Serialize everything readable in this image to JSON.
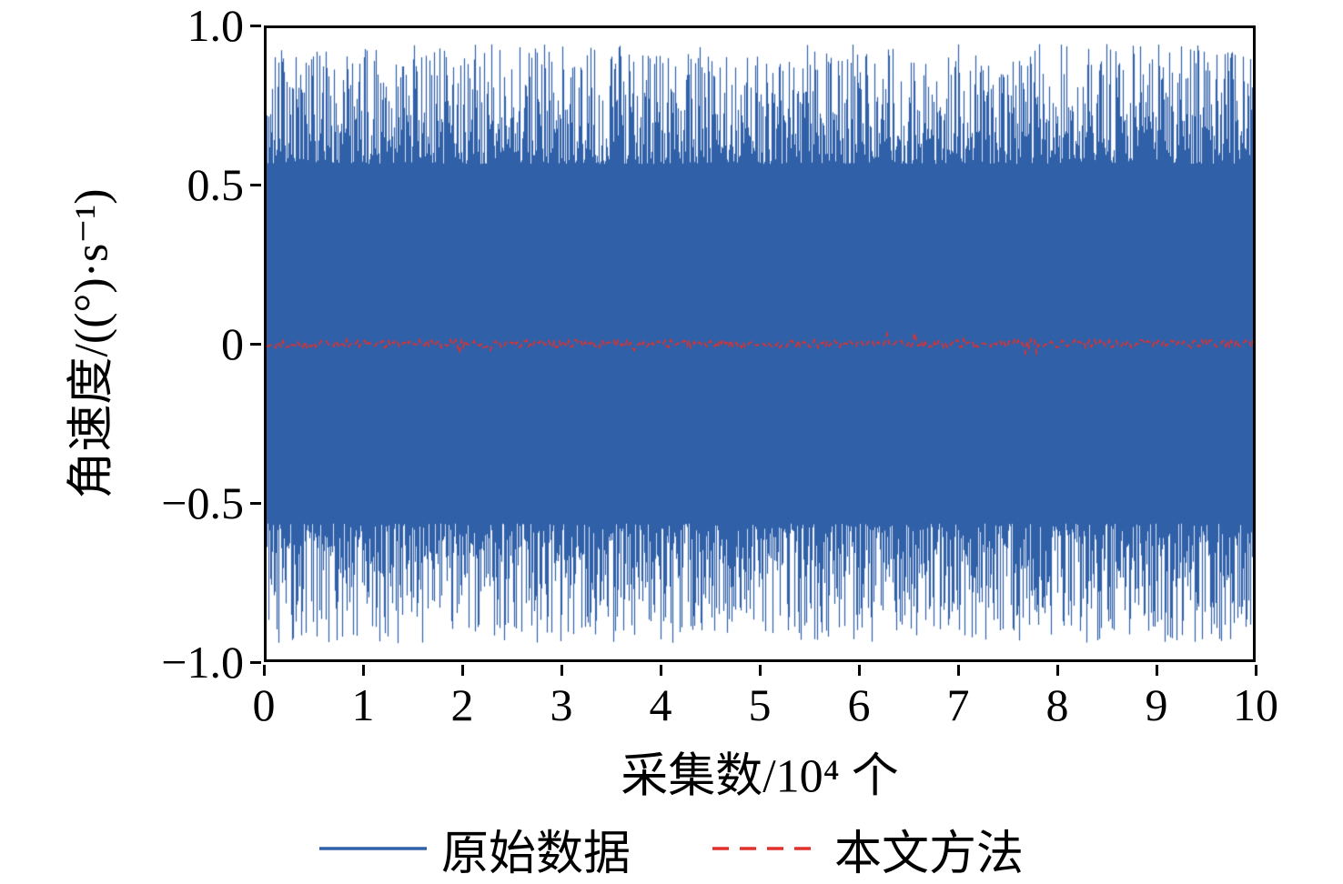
{
  "chart_data": {
    "type": "line",
    "title": "",
    "xlabel": "采集数/10⁴ 个",
    "ylabel": "角速度/((°)·s⁻¹)",
    "xlim": [
      0,
      10
    ],
    "ylim": [
      -1.0,
      1.0
    ],
    "x_tick_values": [
      0,
      1,
      2,
      3,
      4,
      5,
      6,
      7,
      8,
      9,
      10
    ],
    "x_tick_labels": [
      "0",
      "1",
      "2",
      "3",
      "4",
      "5",
      "6",
      "7",
      "8",
      "9",
      "10"
    ],
    "y_tick_values": [
      1.0,
      0.5,
      0,
      -0.5,
      -1.0
    ],
    "y_tick_labels": [
      "1.0",
      "0.5",
      "0",
      "−0.5",
      "−1.0"
    ],
    "grid": false,
    "legend_position": "bottom-center",
    "axis_color": "#000000",
    "background_color": "#ffffff",
    "series": [
      {
        "name": "原始数据",
        "type": "noise-band",
        "line_style": "solid",
        "color": "#3060a8",
        "mean": 0,
        "min_amplitude": 0.57,
        "core_amplitude": 0.65,
        "peak_amplitude": 0.95,
        "seed": 13
      },
      {
        "name": "本文方法",
        "type": "noise-line",
        "line_style": "dashed",
        "color": "#e2312d",
        "mean": 0,
        "core_amplitude": 0.013,
        "peak_amplitude": 0.045,
        "seed": 29
      }
    ]
  }
}
